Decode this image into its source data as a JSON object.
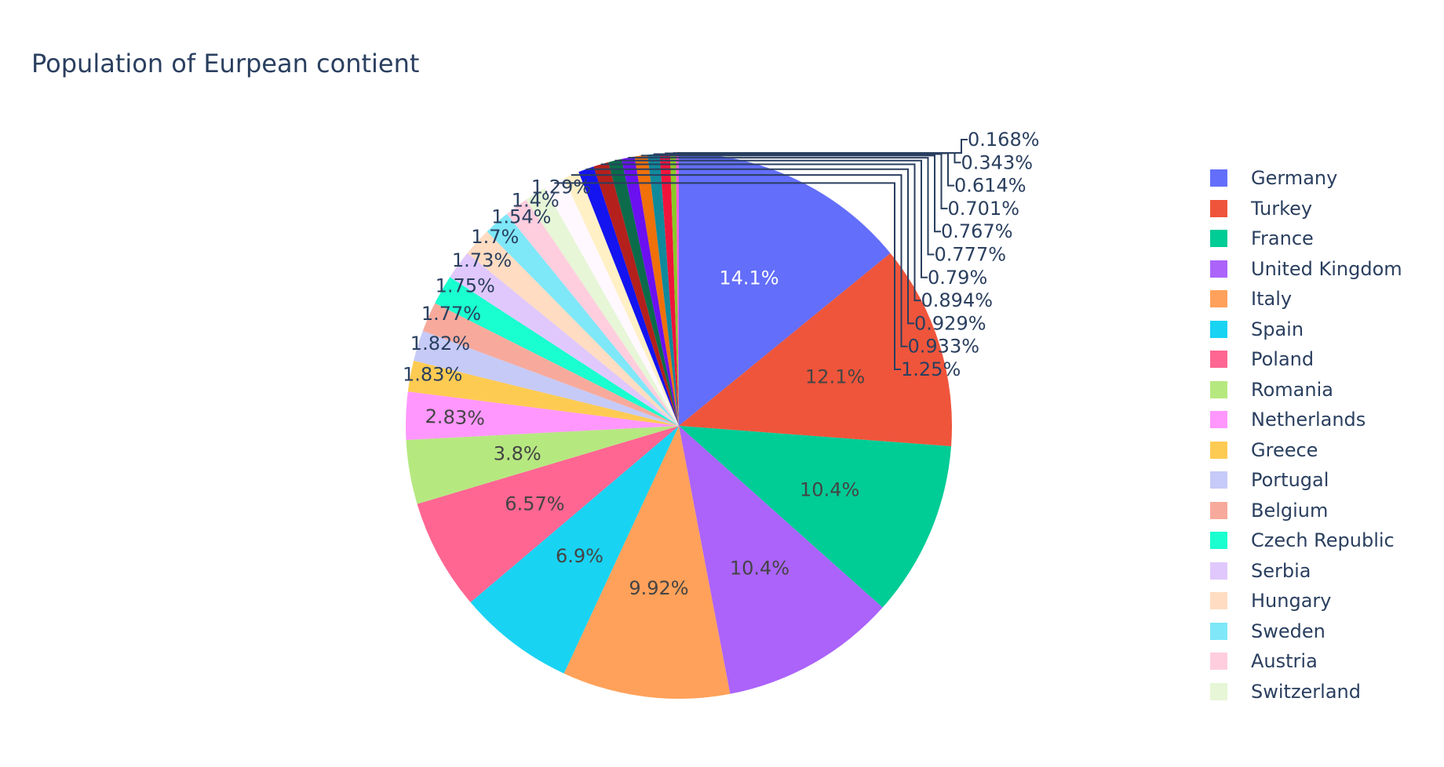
{
  "chart_data": {
    "type": "pie",
    "title": "Population of Eurpean contient",
    "direction": "clockwise",
    "start_angle_deg": 0,
    "legend_position": "right",
    "slices": [
      {
        "label": "Germany",
        "percent": 14.1,
        "text": "14.1%",
        "color": "#636efa",
        "text_inside": true,
        "text_color": "#ffffff"
      },
      {
        "label": "Turkey",
        "percent": 12.1,
        "text": "12.1%",
        "color": "#EF553B",
        "text_inside": true
      },
      {
        "label": "France",
        "percent": 10.4,
        "text": "10.4%",
        "color": "#00cc96",
        "text_inside": true
      },
      {
        "label": "United Kingdom",
        "percent": 10.4,
        "text": "10.4%",
        "color": "#ab63fa",
        "text_inside": true
      },
      {
        "label": "Italy",
        "percent": 9.92,
        "text": "9.92%",
        "color": "#FFA15A",
        "text_inside": true
      },
      {
        "label": "Spain",
        "percent": 6.9,
        "text": "6.9%",
        "color": "#19d3f3",
        "text_inside": true
      },
      {
        "label": "Poland",
        "percent": 6.57,
        "text": "6.57%",
        "color": "#FF6692",
        "text_inside": true
      },
      {
        "label": "Romania",
        "percent": 3.8,
        "text": "3.8%",
        "color": "#B6E880",
        "text_inside": true
      },
      {
        "label": "Netherlands",
        "percent": 2.83,
        "text": "2.83%",
        "color": "#FF97FF",
        "text_inside": true,
        "rotate": true
      },
      {
        "label": "Greece",
        "percent": 1.83,
        "text": "1.83%",
        "color": "#FECB52",
        "text_inside": false
      },
      {
        "label": "Portugal",
        "percent": 1.82,
        "text": "1.82%",
        "color": "#c6caf7",
        "text_inside": false
      },
      {
        "label": "Belgium",
        "percent": 1.77,
        "text": "1.77%",
        "color": "#f7aa9c",
        "text_inside": false
      },
      {
        "label": "Czech Republic",
        "percent": 1.75,
        "text": "1.75%",
        "color": "#1affcf",
        "text_inside": false
      },
      {
        "label": "Serbia",
        "percent": 1.73,
        "text": "1.73%",
        "color": "#e0c8fc",
        "text_inside": false
      },
      {
        "label": "Hungary",
        "percent": 1.7,
        "text": "1.7%",
        "color": "#ffdcc2",
        "text_inside": false
      },
      {
        "label": "Sweden",
        "percent": 1.54,
        "text": "1.54%",
        "color": "#7ee7f8",
        "text_inside": false
      },
      {
        "label": "Austria",
        "percent": 1.4,
        "text": "1.4%",
        "color": "#ffcede",
        "text_inside": false
      },
      {
        "label": "Switzerland",
        "percent": 1.29,
        "text": "1.29%",
        "color": "#e6f6d6",
        "text_inside": false
      },
      {
        "label": "",
        "percent": 1.25,
        "text": "1.25%",
        "color": "#fff8ff",
        "text_inside": false,
        "leader": true
      },
      {
        "label": "",
        "percent": 0.933,
        "text": "0.933%",
        "color": "#fff0c6",
        "text_inside": false,
        "leader": true
      },
      {
        "label": "",
        "percent": 0.929,
        "text": "0.929%",
        "color": "#1414f0",
        "text_inside": false,
        "leader": true
      },
      {
        "label": "",
        "percent": 0.894,
        "text": "0.894%",
        "color": "#b4201c",
        "text_inside": false,
        "leader": true
      },
      {
        "label": "",
        "percent": 0.79,
        "text": "0.79%",
        "color": "#0b6b4a",
        "text_inside": false,
        "leader": true
      },
      {
        "label": "",
        "percent": 0.777,
        "text": "0.777%",
        "color": "#6b10f0",
        "text_inside": false,
        "leader": true
      },
      {
        "label": "",
        "percent": 0.767,
        "text": "0.767%",
        "color": "#f0700a",
        "text_inside": false,
        "leader": true
      },
      {
        "label": "",
        "percent": 0.701,
        "text": "0.701%",
        "color": "#108a9b",
        "text_inside": false,
        "leader": true
      },
      {
        "label": "",
        "percent": 0.614,
        "text": "0.614%",
        "color": "#f0143c",
        "text_inside": false,
        "leader": true
      },
      {
        "label": "",
        "percent": 0.343,
        "text": "0.343%",
        "color": "#8ac926",
        "text_inside": false,
        "leader": true
      },
      {
        "label": "",
        "percent": 0.168,
        "text": "0.168%",
        "color": "#ff59d6",
        "text_inside": false,
        "leader": true
      }
    ],
    "legend_items": [
      "Germany",
      "Turkey",
      "France",
      "United Kingdom",
      "Italy",
      "Spain",
      "Poland",
      "Romania",
      "Netherlands",
      "Greece",
      "Portugal",
      "Belgium",
      "Czech Republic",
      "Serbia",
      "Hungary",
      "Sweden",
      "Austria",
      "Switzerland"
    ]
  }
}
